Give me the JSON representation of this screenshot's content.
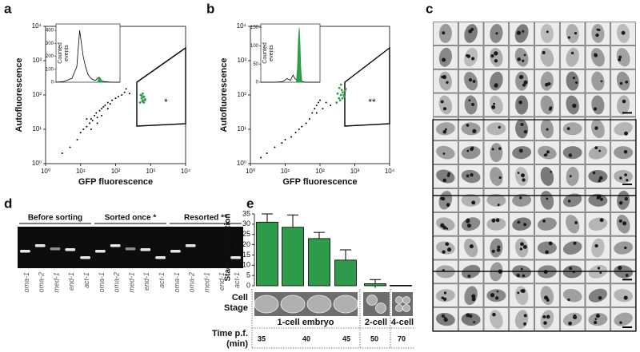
{
  "panel_labels": [
    "a",
    "b",
    "c",
    "d",
    "e"
  ],
  "chart_data": [
    {
      "type": "scatter",
      "xlabel": "GFP fluorescence",
      "ylabel": "Autofluorescence",
      "log_x": true,
      "log_y": true,
      "xlim": [
        1,
        10000
      ],
      "ylim": [
        1,
        10000
      ],
      "xticks": [
        {
          "value": 1,
          "label": "10⁰"
        },
        {
          "value": 10,
          "label": "10¹"
        },
        {
          "value": 100,
          "label": "10²"
        },
        {
          "value": 1000,
          "label": "10³"
        },
        {
          "value": 10000,
          "label": "10⁴"
        }
      ],
      "yticks": [
        {
          "value": 1,
          "label": "10⁰"
        },
        {
          "value": 10,
          "label": "10¹"
        },
        {
          "value": 100,
          "label": "10²"
        },
        {
          "value": 1000,
          "label": "10³"
        },
        {
          "value": 10000,
          "label": "10⁴"
        }
      ],
      "annotation": "*",
      "series": [
        {
          "color": "#000000",
          "x": [
            3,
            5,
            8,
            10,
            12,
            15,
            18,
            20,
            22,
            25,
            28,
            30,
            35,
            40,
            45,
            50,
            60,
            70,
            80,
            100,
            120,
            150,
            180,
            200,
            250,
            30,
            40,
            60,
            20,
            15
          ],
          "values": [
            2,
            3,
            5,
            8,
            10,
            12,
            15,
            20,
            18,
            25,
            30,
            22,
            35,
            40,
            45,
            50,
            60,
            55,
            70,
            80,
            90,
            100,
            120,
            150,
            110,
            15,
            25,
            40,
            10,
            20
          ]
        },
        {
          "color": "#2e9b4a",
          "x": [
            500,
            550,
            600,
            650,
            700,
            520,
            580,
            620,
            680,
            560,
            600,
            640
          ],
          "values": [
            60,
            80,
            70,
            90,
            75,
            100,
            65,
            85,
            70,
            95,
            110,
            60
          ]
        }
      ],
      "inset": {
        "type": "line",
        "ylabel": [
          "Counted",
          "events"
        ],
        "log_x": true,
        "xlim": [
          1,
          10000
        ],
        "ylim": [
          0,
          450
        ],
        "yticks": [
          0,
          100,
          200,
          300,
          400
        ],
        "series": [
          {
            "color": "#000000",
            "x": [
              1,
              3,
              10,
              20,
              30,
              50,
              70,
              100,
              150,
              200,
              300,
              500,
              700,
              1000,
              3000,
              10000
            ],
            "values": [
              0,
              5,
              30,
              120,
              400,
              200,
              120,
              60,
              30,
              20,
              15,
              40,
              10,
              5,
              0,
              0
            ]
          },
          {
            "color": "#2e9b4a",
            "fill": true,
            "x": [
              400,
              500,
              600,
              700,
              800
            ],
            "values": [
              0,
              40,
              30,
              10,
              0
            ]
          }
        ]
      }
    },
    {
      "type": "scatter",
      "xlabel": "GFP fluorescence",
      "ylabel": "Autofluorescence",
      "log_x": true,
      "log_y": true,
      "xlim": [
        1,
        10000
      ],
      "ylim": [
        1,
        10000
      ],
      "xticks": [
        {
          "value": 1,
          "label": "10⁰"
        },
        {
          "value": 10,
          "label": "10¹"
        },
        {
          "value": 100,
          "label": "10²"
        },
        {
          "value": 1000,
          "label": "10³"
        },
        {
          "value": 10000,
          "label": "10⁴"
        }
      ],
      "yticks": [
        {
          "value": 1,
          "label": "10⁰"
        },
        {
          "value": 10,
          "label": "10¹"
        },
        {
          "value": 100,
          "label": "10²"
        },
        {
          "value": 1000,
          "label": "10³"
        },
        {
          "value": 10000,
          "label": "10⁴"
        }
      ],
      "annotation": "**",
      "series": [
        {
          "color": "#000000",
          "x": [
            2,
            3,
            5,
            8,
            10,
            15,
            20,
            25,
            30,
            40,
            50,
            60,
            70,
            80,
            90,
            100,
            120,
            150,
            80,
            200
          ],
          "values": [
            1.5,
            2,
            3,
            4,
            5,
            6,
            8,
            10,
            12,
            15,
            20,
            30,
            40,
            50,
            60,
            70,
            40,
            60,
            30,
            50
          ]
        },
        {
          "color": "#2e9b4a",
          "x": [
            300,
            350,
            400,
            450,
            500,
            550,
            320,
            380,
            420,
            480,
            520,
            360,
            440,
            400
          ],
          "values": [
            60,
            80,
            100,
            120,
            90,
            150,
            110,
            70,
            140,
            100,
            130,
            160,
            80,
            200
          ]
        }
      ],
      "inset": {
        "type": "line",
        "ylabel": [
          "Counted",
          "events"
        ],
        "log_x": true,
        "xlim": [
          1,
          10000
        ],
        "ylim": [
          0,
          160
        ],
        "yticks": [
          0,
          50,
          100,
          150
        ],
        "series": [
          {
            "color": "#000000",
            "x": [
              1,
              10,
              30,
              60,
              100,
              150,
              200,
              300,
              1000,
              10000
            ],
            "values": [
              0,
              0,
              2,
              10,
              5,
              20,
              10,
              5,
              0,
              0
            ]
          },
          {
            "color": "#2e9b4a",
            "fill": true,
            "x": [
              250,
              300,
              350,
              400,
              450,
              500,
              600
            ],
            "values": [
              0,
              40,
              120,
              150,
              100,
              40,
              0
            ]
          }
        ]
      }
    },
    {
      "type": "bar",
      "ylabel": [
        "Stage distribution",
        "(%)"
      ],
      "color": "#2e9b4a",
      "values": [
        31,
        28.5,
        23,
        12.5,
        1,
        0.2
      ],
      "errors": [
        4,
        6,
        3,
        5,
        2,
        0
      ],
      "ylim": [
        0,
        35
      ],
      "yticks": [
        0,
        5,
        10,
        15,
        20,
        25,
        30,
        35
      ]
    }
  ],
  "stage_table": {
    "stage_label": [
      "Cell",
      "Stage"
    ],
    "stage_names": [
      "1-cell embryo",
      "2-cell",
      "4-cell"
    ],
    "time_label": [
      "Time p.f.",
      "(min)"
    ],
    "times": [
      "35",
      "40",
      "45",
      "50",
      "70"
    ]
  },
  "gel": {
    "groups": [
      "Before sorting",
      "Sorted once *",
      "Resorted **"
    ],
    "lanes": [
      "oma-1",
      "oma-2",
      "med-1",
      "end-1",
      "act-1",
      "oma-1",
      "oma-2",
      "med-1",
      "end-1",
      "act-1",
      "oma-1",
      "oma-2",
      "med-1",
      "end-1",
      "act-1"
    ]
  }
}
